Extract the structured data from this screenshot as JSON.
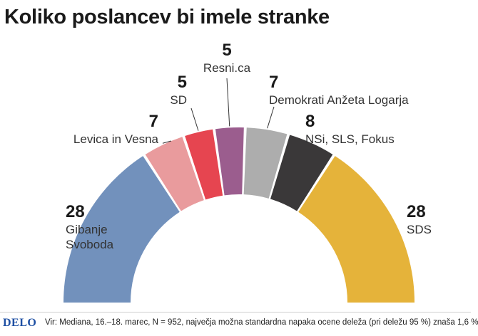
{
  "title": "Koliko poslancev bi imele stranke",
  "chart_data": {
    "type": "pie",
    "subtype": "semicircle-parliament",
    "total": 88,
    "series": [
      {
        "name": "Gibanje Svoboda",
        "label_lines": [
          "Gibanje",
          "Svoboda"
        ],
        "value": 28,
        "color": "#7291bc"
      },
      {
        "name": "Levica in Vesna",
        "label_lines": [
          "Levica in Vesna"
        ],
        "value": 7,
        "color": "#e99b9d"
      },
      {
        "name": "SD",
        "label_lines": [
          "SD"
        ],
        "value": 5,
        "color": "#e64550"
      },
      {
        "name": "Resni.ca",
        "label_lines": [
          "Resni.ca"
        ],
        "value": 5,
        "color": "#9b5d8e"
      },
      {
        "name": "Demokrati Anžeta Logarja",
        "label_lines": [
          "Demokrati Anžeta Logarja"
        ],
        "value": 7,
        "color": "#adadad"
      },
      {
        "name": "NSi, SLS, Fokus",
        "label_lines": [
          "NSi, SLS, Fokus"
        ],
        "value": 8,
        "color": "#3a3839"
      },
      {
        "name": "SDS",
        "label_lines": [
          "SDS"
        ],
        "value": 28,
        "color": "#e5b33a"
      }
    ]
  },
  "footer": {
    "logo": "DELO",
    "source": "Vir: Mediana, 16.–18. marec, N = 952, največja možna standardna napaka ocene deleža (pri deležu 95 %) znaša 1,6 %"
  }
}
